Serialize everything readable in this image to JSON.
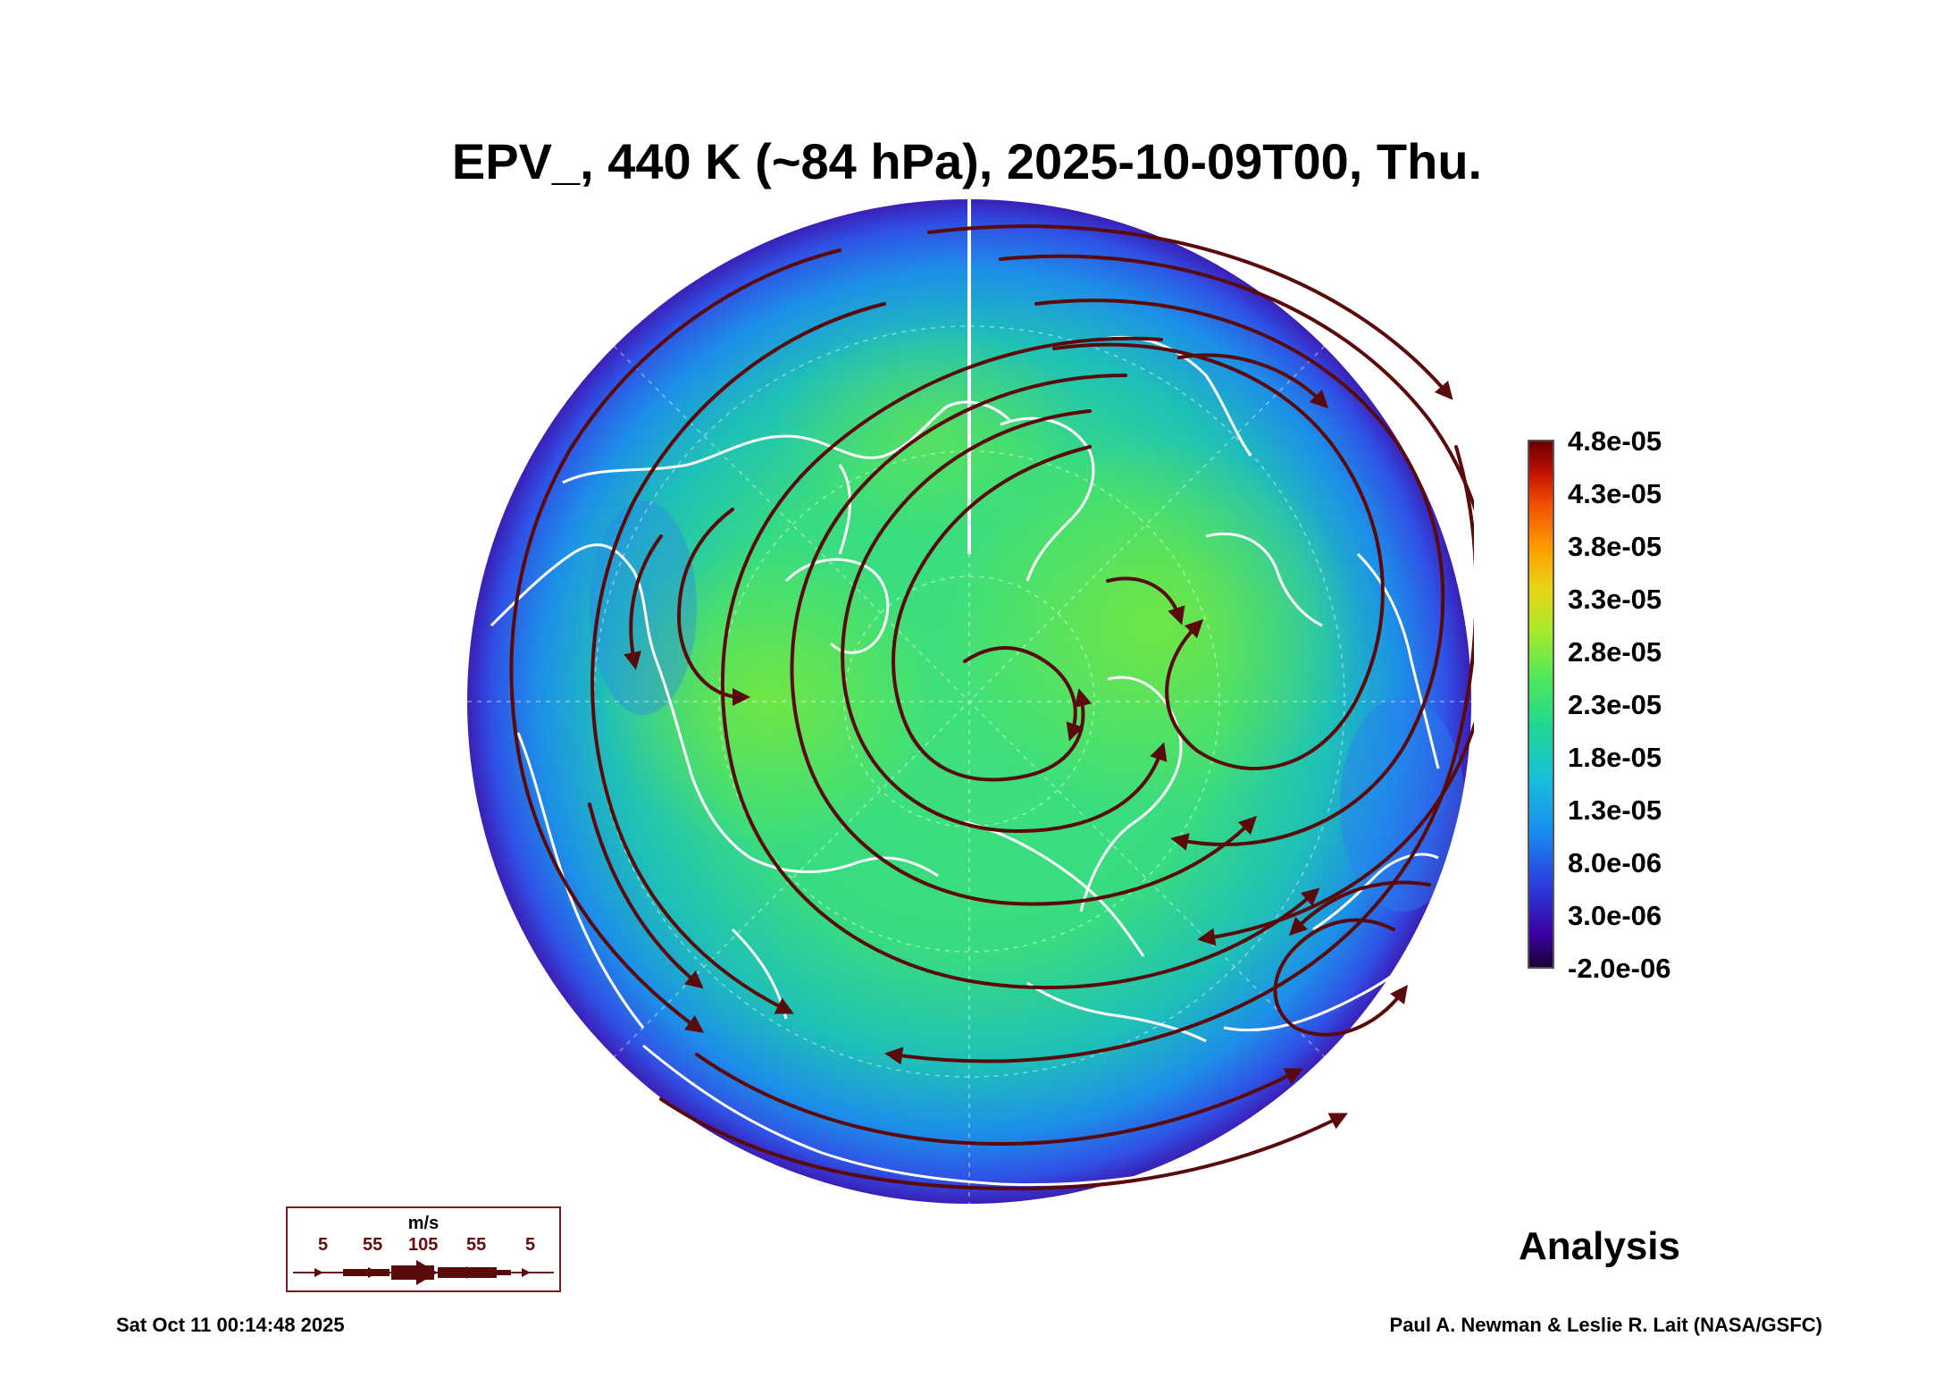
{
  "title": "EPV_, 440 K (~84 hPa), 2025-10-09T00, Thu.",
  "colorbar": {
    "labels": [
      "4.8e-05",
      "4.3e-05",
      "3.8e-05",
      "3.3e-05",
      "2.8e-05",
      "2.3e-05",
      "1.8e-05",
      "1.3e-05",
      "8.0e-06",
      "3.0e-06",
      "-2.0e-06"
    ]
  },
  "wind_legend": {
    "unit": "m/s",
    "values": [
      "5",
      "55",
      "105",
      "55",
      "5"
    ]
  },
  "stamp": "Analysis",
  "footer": {
    "timestamp": "Sat Oct 11 00:14:48 2025",
    "credit": "Paul A. Newman & Leslie R. Lait (NASA/GSFC)"
  },
  "colors": {
    "streamline": "#5a0a0a",
    "coastline": "#ffffff",
    "field_low": "#3a00a0",
    "field_mid": "#20d890",
    "field_high": "#6a0000"
  }
}
